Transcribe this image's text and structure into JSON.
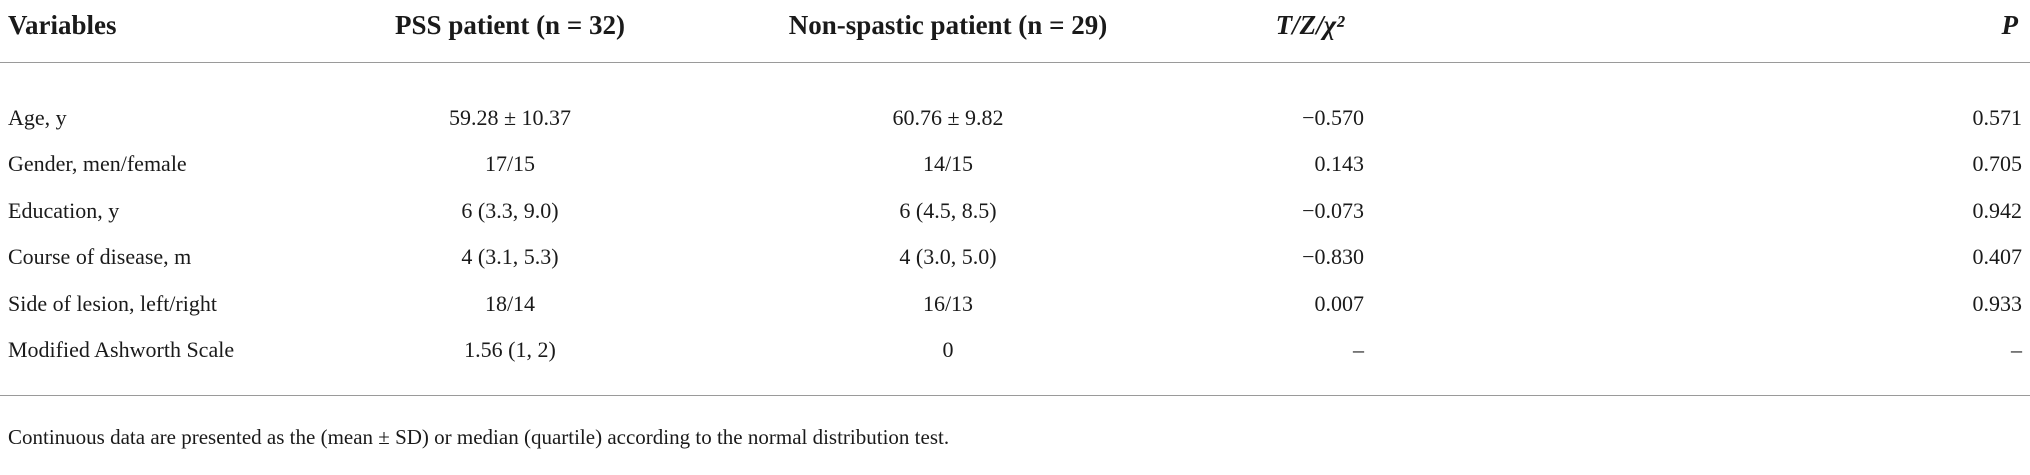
{
  "table": {
    "header": [
      "Variables",
      "PSS patient (n = 32)",
      "Non-spastic patient (n = 29)",
      "T/Z/χ²",
      "P"
    ],
    "rows": [
      [
        "Age, y",
        "59.28 ± 10.37",
        "60.76 ± 9.82",
        "−0.570",
        "0.571"
      ],
      [
        "Gender, men/female",
        "17/15",
        "14/15",
        "0.143",
        "0.705"
      ],
      [
        "Education, y",
        "6 (3.3, 9.0)",
        "6 (4.5, 8.5)",
        "−0.073",
        "0.942"
      ],
      [
        "Course of disease, m",
        "4 (3.1, 5.3)",
        "4 (3.0, 5.0)",
        "−0.830",
        "0.407"
      ],
      [
        "Side of lesion, left/right",
        "18/14",
        "16/13",
        "0.007",
        "0.933"
      ],
      [
        "Modified Ashworth Scale",
        "1.56 (1, 2)",
        "0",
        "–",
        "–"
      ]
    ],
    "footnote": "Continuous data are presented as the (mean ± SD) or median (quartile) according to the normal distribution test."
  }
}
